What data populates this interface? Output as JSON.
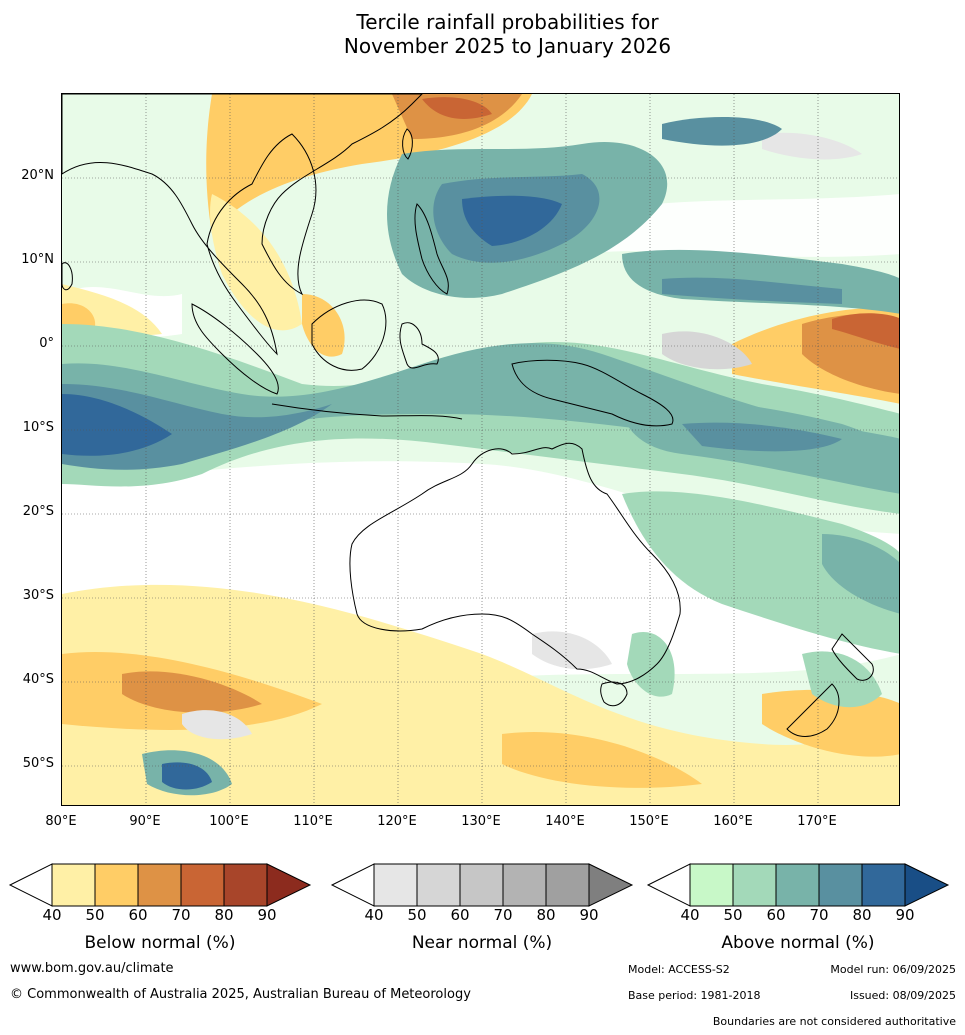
{
  "title_line1": "Tercile rainfall probabilities for",
  "title_line2": "November 2025 to January 2026",
  "lat_labels": [
    "20°N",
    "10°N",
    "0°",
    "10°S",
    "20°S",
    "30°S",
    "40°S",
    "50°S"
  ],
  "lon_labels": [
    "80°E",
    "90°E",
    "100°E",
    "110°E",
    "120°E",
    "130°E",
    "140°E",
    "150°E",
    "160°E",
    "170°E"
  ],
  "colorbars": [
    {
      "label": "Below normal (%)",
      "ticks": [
        "40",
        "50",
        "60",
        "70",
        "80",
        "90"
      ],
      "colors": [
        "#fff0a6",
        "#ffcd66",
        "#de9245",
        "#c96534",
        "#a8452a",
        "#8c2b1e"
      ]
    },
    {
      "label": "Near normal (%)",
      "ticks": [
        "40",
        "50",
        "60",
        "70",
        "80",
        "90"
      ],
      "colors": [
        "#e6e6e6",
        "#d6d6d6",
        "#c6c6c6",
        "#b3b3b3",
        "#a0a0a0",
        "#7f7f7f"
      ]
    },
    {
      "label": "Above normal (%)",
      "ticks": [
        "40",
        "50",
        "60",
        "70",
        "80",
        "90"
      ],
      "colors": [
        "#c8f8c8",
        "#a3d9b9",
        "#78b3a9",
        "#5990a0",
        "#31689a",
        "#194e86"
      ]
    }
  ],
  "footer": {
    "website": "www.bom.gov.au/climate",
    "copyright": "© Commonwealth of Australia 2025, Australian Bureau of Meteorology",
    "model": "Model: ACCESS-S2",
    "model_run": "Model run: 06/09/2025",
    "base_period": "Base period: 1981-2018",
    "issued": "Issued: 08/09/2025",
    "boundaries": "Boundaries are not considered authoritative"
  }
}
